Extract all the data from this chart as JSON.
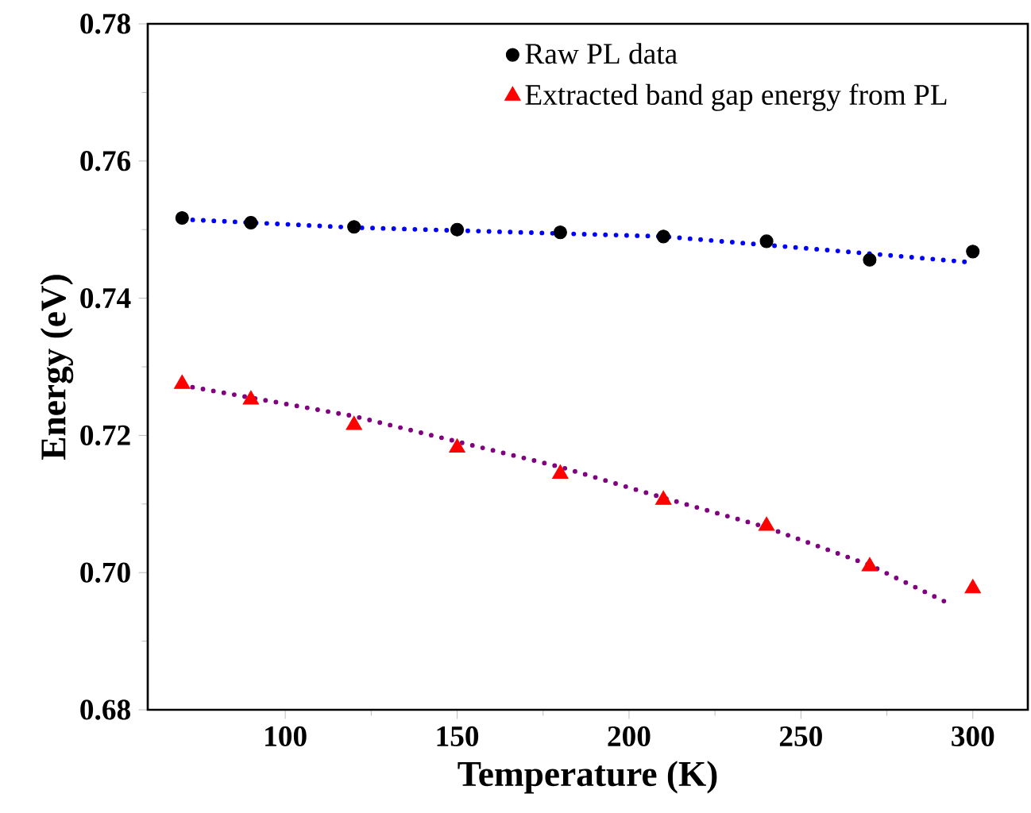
{
  "chart_data": {
    "type": "scatter",
    "xlabel": "Temperature (K)",
    "ylabel": "Energy (eV)",
    "xlim": [
      60,
      316
    ],
    "ylim": [
      0.68,
      0.78
    ],
    "xticks": [
      100,
      150,
      200,
      250,
      300
    ],
    "yticks": [
      {
        "value": 0.68,
        "label": "0.68"
      },
      {
        "value": 0.7,
        "label": "0.70"
      },
      {
        "value": 0.72,
        "label": "0.72"
      },
      {
        "value": 0.74,
        "label": "0.74"
      },
      {
        "value": 0.76,
        "label": "0.76"
      },
      {
        "value": 0.78,
        "label": "0.78"
      }
    ],
    "grid": false,
    "legend": "top",
    "series": [
      {
        "name": "Raw PL data",
        "marker": "circle",
        "color": "#000000",
        "x": [
          70,
          90,
          120,
          150,
          180,
          210,
          240,
          270,
          300
        ],
        "values": [
          0.7517,
          0.751,
          0.7504,
          0.75,
          0.7496,
          0.749,
          0.7483,
          0.7456,
          0.7468
        ]
      },
      {
        "name": "Extracted band gap energy from PL",
        "marker": "triangle",
        "color": "#ff0000",
        "x": [
          70,
          90,
          120,
          150,
          180,
          210,
          240,
          270,
          300
        ],
        "values": [
          0.7275,
          0.7252,
          0.7215,
          0.7182,
          0.7144,
          0.7106,
          0.7068,
          0.7009,
          0.6977
        ]
      },
      {
        "type": "line",
        "marker": "none",
        "line_style": "dotted",
        "color": "#0000ff",
        "x": [
          70,
          120,
          210,
          270,
          300
        ],
        "values": [
          0.7515,
          0.7503,
          0.749,
          0.7465,
          0.7452
        ]
      },
      {
        "type": "line",
        "marker": "none",
        "line_style": "dotted",
        "color": "#800080",
        "x": [
          70,
          120,
          150,
          180,
          210,
          240,
          270,
          293
        ],
        "values": [
          0.7273,
          0.7228,
          0.7191,
          0.7154,
          0.7109,
          0.7066,
          0.7011,
          0.6955
        ]
      }
    ]
  }
}
